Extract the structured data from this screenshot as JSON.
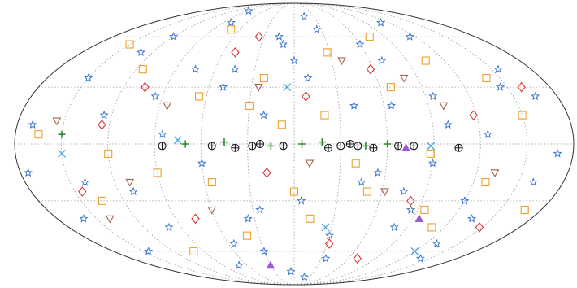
{
  "chart_data": {
    "type": "scatter",
    "projection": "mollweide",
    "grid": true,
    "xlim": [
      -180,
      180
    ],
    "ylim": [
      -90,
      90
    ],
    "xticks": [
      -150,
      -120,
      -90,
      -60,
      -30,
      0,
      30,
      60,
      90,
      120,
      150
    ],
    "yticks": [
      -60,
      -30,
      0,
      30,
      60
    ],
    "series": [
      {
        "marker": "star",
        "color": "#3b78d0",
        "x": [
          -170,
          -150,
          -140,
          -120,
          -100,
          -95,
          -80,
          -60,
          -45,
          -30,
          -20,
          -10,
          5,
          15,
          30,
          40,
          55,
          70,
          85,
          100,
          115,
          130,
          145,
          160,
          170,
          -160,
          -130,
          -110,
          -85,
          -70,
          -50,
          -35,
          -5,
          10,
          25,
          45,
          60,
          80,
          95,
          120,
          140,
          155,
          -175,
          -125,
          -90,
          -55,
          -25,
          0,
          35,
          65,
          90,
          110,
          135,
          165,
          -145,
          -75,
          -15,
          20,
          75,
          125
        ],
        "values": [
          10,
          35,
          -20,
          60,
          -45,
          25,
          70,
          -10,
          40,
          -60,
          15,
          55,
          -30,
          75,
          -50,
          20,
          -15,
          45,
          -35,
          10,
          60,
          -55,
          30,
          -20,
          -5,
          -40,
          50,
          -25,
          5,
          -70,
          30,
          -40,
          -75,
          35,
          65,
          -20,
          55,
          -45,
          25,
          -30,
          -65,
          40,
          -15,
          15,
          80,
          -55,
          -35,
          45,
          -65,
          20,
          -10,
          70,
          -40,
          25,
          -60,
          40,
          60,
          -80,
          -25,
          5
        ]
      },
      {
        "marker": "square",
        "color": "#f0a028",
        "x": [
          -165,
          -135,
          -115,
          -90,
          -65,
          -40,
          -22,
          -8,
          12,
          28,
          50,
          68,
          88,
          105,
          128,
          150,
          168,
          -150,
          -100,
          -70,
          -30,
          0,
          40,
          75,
          110,
          140,
          -120,
          -55,
          20,
          95
        ],
        "values": [
          5,
          -30,
          40,
          -15,
          25,
          -50,
          35,
          10,
          -40,
          50,
          -25,
          30,
          -5,
          45,
          -20,
          15,
          -35,
          55,
          -60,
          65,
          20,
          -25,
          -10,
          60,
          -45,
          35,
          -5,
          -20,
          15,
          -35
        ]
      },
      {
        "marker": "diamond",
        "color": "#e03434",
        "x": [
          -145,
          -105,
          -75,
          -50,
          -18,
          8,
          32,
          58,
          82,
          118,
          148,
          -125,
          -35,
          70,
          160
        ],
        "values": [
          -25,
          30,
          -40,
          50,
          -15,
          25,
          -55,
          40,
          -30,
          15,
          -45,
          10,
          60,
          -65,
          30
        ]
      },
      {
        "marker": "tri-down",
        "color": "#a8644c",
        "x": [
          -155,
          -110,
          -85,
          -60,
          -25,
          10,
          38,
          62,
          100,
          132,
          -140,
          80
        ],
        "values": [
          12,
          -20,
          20,
          -35,
          30,
          -10,
          45,
          -25,
          20,
          -15,
          -40,
          35
        ]
      },
      {
        "marker": "circle-plus",
        "color": "#1a1a1a",
        "x": [
          -85,
          -53,
          -38,
          -27,
          -22,
          -7,
          22,
          30,
          36,
          41,
          51,
          67,
          77,
          106
        ],
        "values": [
          -1,
          -1,
          -2,
          -1,
          0,
          -1,
          -2,
          -1,
          0,
          -1,
          -2,
          -1,
          -1,
          -2
        ]
      },
      {
        "marker": "plus",
        "color": "#2a8a2a",
        "x": [
          -70,
          -45,
          -15,
          5,
          18,
          46,
          60,
          -150
        ],
        "values": [
          0,
          1,
          -1,
          0,
          1,
          -1,
          0,
          5
        ]
      },
      {
        "marker": "x",
        "color": "#50a8e0",
        "x": [
          -150,
          -75,
          25,
          88,
          120,
          -5
        ],
        "values": [
          -5,
          2,
          -45,
          -1,
          -60,
          30
        ]
      },
      {
        "marker": "tri-up",
        "color": "#9a5cd0",
        "x": [
          72,
          95,
          -30
        ],
        "values": [
          -2,
          -40,
          -70
        ]
      }
    ]
  }
}
